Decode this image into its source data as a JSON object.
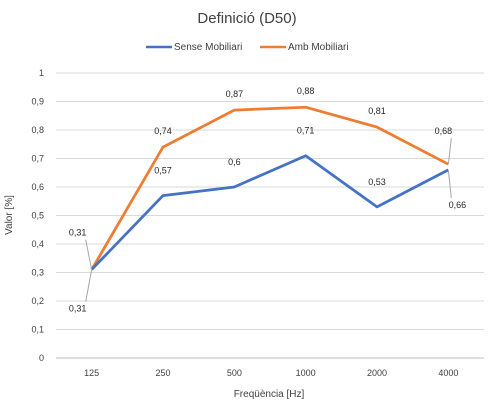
{
  "chart_data": {
    "type": "line",
    "title": "Definició (D50)",
    "xlabel": "Freqüència [Hz]",
    "ylabel": "Valor [%]",
    "categories": [
      "125",
      "250",
      "500",
      "1000",
      "2000",
      "4000"
    ],
    "ylim": [
      0,
      1
    ],
    "yticks": [
      "0",
      "0,1",
      "0,2",
      "0,3",
      "0,4",
      "0,5",
      "0,6",
      "0,7",
      "0,8",
      "0,9",
      "1"
    ],
    "grid": true,
    "legend_position": "top",
    "series": [
      {
        "name": "Sense Mobiliari",
        "color": "#4472c4",
        "values": [
          0.31,
          0.57,
          0.6,
          0.71,
          0.53,
          0.66
        ],
        "labels": [
          "0,31",
          "0,57",
          "0,6",
          "0,71",
          "0,53",
          "0,66"
        ]
      },
      {
        "name": "Amb Mobiliari",
        "color": "#ed7d31",
        "values": [
          0.31,
          0.74,
          0.87,
          0.88,
          0.81,
          0.68
        ],
        "labels": [
          "0,31",
          "0,74",
          "0,87",
          "0,88",
          "0,81",
          "0,68"
        ]
      }
    ]
  }
}
